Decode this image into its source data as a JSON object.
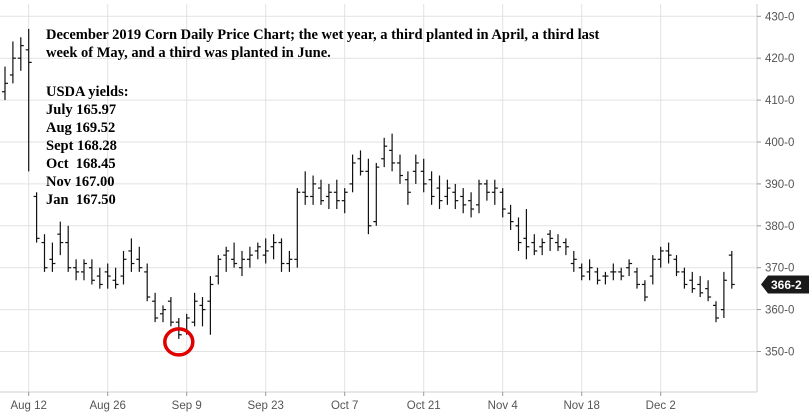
{
  "chart_data": {
    "type": "ohlc",
    "title": "December 2019 Corn Daily Price Chart; the wet year, a third planted in April, a third last\nweek of May, and a third was planted in June.",
    "annotation": {
      "heading": "USDA yields:",
      "lines": [
        "July 165.97",
        "Aug 169.52",
        "Sept 168.28",
        "Oct  168.45",
        "Nov 167.00",
        "Jan  167.50"
      ]
    },
    "last_price_label": "366-2",
    "ylim": [
      345,
      432
    ],
    "y_ticks": [
      {
        "value": 350,
        "label": "350-0"
      },
      {
        "value": 360,
        "label": "360-0"
      },
      {
        "value": 370,
        "label": "370-0"
      },
      {
        "value": 380,
        "label": "380-0"
      },
      {
        "value": 390,
        "label": "390-0"
      },
      {
        "value": 400,
        "label": "400-0"
      },
      {
        "value": 410,
        "label": "410-0"
      },
      {
        "value": 420,
        "label": "420-0"
      },
      {
        "value": 430,
        "label": "430-0"
      }
    ],
    "x_ticks": [
      {
        "index": 3,
        "label": "Aug 12"
      },
      {
        "index": 13,
        "label": "Aug 26"
      },
      {
        "index": 23,
        "label": "Sep 9"
      },
      {
        "index": 33,
        "label": "Sep 23"
      },
      {
        "index": 43,
        "label": "Oct 7"
      },
      {
        "index": 53,
        "label": "Oct 21"
      },
      {
        "index": 63,
        "label": "Nov 4"
      },
      {
        "index": 73,
        "label": "Nov 18"
      },
      {
        "index": 83,
        "label": "Dec 2"
      }
    ],
    "circled_bar_index": 22,
    "colors": {
      "bars": "#111111",
      "grid": "#e2e2e2",
      "badge": "#1a1a1a",
      "circle": "#e00000"
    },
    "bars": [
      {
        "o": 412,
        "h": 418,
        "l": 410,
        "c": 414
      },
      {
        "o": 416,
        "h": 424,
        "l": 414,
        "c": 420
      },
      {
        "o": 420,
        "h": 425,
        "l": 417,
        "c": 423
      },
      {
        "o": 422,
        "h": 427,
        "l": 393,
        "c": 419
      },
      {
        "o": 387,
        "h": 388,
        "l": 376,
        "c": 377
      },
      {
        "o": 376,
        "h": 378,
        "l": 369,
        "c": 370
      },
      {
        "o": 372,
        "h": 376,
        "l": 369,
        "c": 371
      },
      {
        "o": 378,
        "h": 381,
        "l": 373,
        "c": 376
      },
      {
        "o": 376,
        "h": 380,
        "l": 369,
        "c": 370
      },
      {
        "o": 370,
        "h": 372,
        "l": 367,
        "c": 369
      },
      {
        "o": 369,
        "h": 372,
        "l": 367,
        "c": 371
      },
      {
        "o": 370,
        "h": 372,
        "l": 366,
        "c": 367
      },
      {
        "o": 368,
        "h": 370,
        "l": 365,
        "c": 366
      },
      {
        "o": 369,
        "h": 371,
        "l": 365,
        "c": 368
      },
      {
        "o": 367,
        "h": 370,
        "l": 365,
        "c": 366
      },
      {
        "o": 368,
        "h": 374,
        "l": 366,
        "c": 372
      },
      {
        "o": 374,
        "h": 377,
        "l": 369,
        "c": 371
      },
      {
        "o": 372,
        "h": 375,
        "l": 369,
        "c": 370
      },
      {
        "o": 369,
        "h": 371,
        "l": 362,
        "c": 363
      },
      {
        "o": 362,
        "h": 364,
        "l": 357,
        "c": 358
      },
      {
        "o": 359,
        "h": 361,
        "l": 357,
        "c": 360
      },
      {
        "o": 362,
        "h": 363,
        "l": 356,
        "c": 357
      },
      {
        "o": 357,
        "h": 358,
        "l": 353,
        "c": 354
      },
      {
        "o": 355,
        "h": 359,
        "l": 354,
        "c": 358
      },
      {
        "o": 357,
        "h": 364,
        "l": 356,
        "c": 362
      },
      {
        "o": 361,
        "h": 363,
        "l": 356,
        "c": 360
      },
      {
        "o": 362,
        "h": 368,
        "l": 354,
        "c": 366
      },
      {
        "o": 368,
        "h": 373,
        "l": 366,
        "c": 372
      },
      {
        "o": 373,
        "h": 375,
        "l": 369,
        "c": 374
      },
      {
        "o": 372,
        "h": 376,
        "l": 370,
        "c": 371
      },
      {
        "o": 370,
        "h": 374,
        "l": 368,
        "c": 372
      },
      {
        "o": 372,
        "h": 375,
        "l": 370,
        "c": 373
      },
      {
        "o": 374,
        "h": 376,
        "l": 372,
        "c": 375
      },
      {
        "o": 373,
        "h": 377,
        "l": 371,
        "c": 374
      },
      {
        "o": 375,
        "h": 378,
        "l": 372,
        "c": 376
      },
      {
        "o": 376,
        "h": 377,
        "l": 369,
        "c": 371
      },
      {
        "o": 371,
        "h": 374,
        "l": 369,
        "c": 372
      },
      {
        "o": 372,
        "h": 389,
        "l": 370,
        "c": 388
      },
      {
        "o": 388,
        "h": 393,
        "l": 385,
        "c": 387
      },
      {
        "o": 387,
        "h": 392,
        "l": 385,
        "c": 390
      },
      {
        "o": 389,
        "h": 391,
        "l": 385,
        "c": 386
      },
      {
        "o": 387,
        "h": 390,
        "l": 384,
        "c": 388
      },
      {
        "o": 388,
        "h": 391,
        "l": 384,
        "c": 386
      },
      {
        "o": 386,
        "h": 389,
        "l": 383,
        "c": 388
      },
      {
        "o": 390,
        "h": 397,
        "l": 388,
        "c": 395
      },
      {
        "o": 396,
        "h": 398,
        "l": 392,
        "c": 393
      },
      {
        "o": 393,
        "h": 396,
        "l": 378,
        "c": 380
      },
      {
        "o": 381,
        "h": 395,
        "l": 380,
        "c": 394
      },
      {
        "o": 396,
        "h": 401,
        "l": 394,
        "c": 399
      },
      {
        "o": 398,
        "h": 402,
        "l": 393,
        "c": 395
      },
      {
        "o": 395,
        "h": 397,
        "l": 390,
        "c": 392
      },
      {
        "o": 391,
        "h": 393,
        "l": 385,
        "c": 388
      },
      {
        "o": 393,
        "h": 397,
        "l": 390,
        "c": 395
      },
      {
        "o": 393,
        "h": 396,
        "l": 388,
        "c": 390
      },
      {
        "o": 391,
        "h": 393,
        "l": 385,
        "c": 387
      },
      {
        "o": 389,
        "h": 392,
        "l": 384,
        "c": 386
      },
      {
        "o": 387,
        "h": 391,
        "l": 385,
        "c": 389
      },
      {
        "o": 388,
        "h": 390,
        "l": 384,
        "c": 386
      },
      {
        "o": 387,
        "h": 389,
        "l": 383,
        "c": 385
      },
      {
        "o": 386,
        "h": 388,
        "l": 382,
        "c": 384
      },
      {
        "o": 385,
        "h": 391,
        "l": 383,
        "c": 390
      },
      {
        "o": 390,
        "h": 391,
        "l": 386,
        "c": 388
      },
      {
        "o": 388,
        "h": 391,
        "l": 385,
        "c": 389
      },
      {
        "o": 388,
        "h": 389,
        "l": 382,
        "c": 384
      },
      {
        "o": 383,
        "h": 385,
        "l": 379,
        "c": 381
      },
      {
        "o": 380,
        "h": 382,
        "l": 374,
        "c": 376
      },
      {
        "o": 377,
        "h": 384,
        "l": 372,
        "c": 375
      },
      {
        "o": 376,
        "h": 378,
        "l": 373,
        "c": 374
      },
      {
        "o": 375,
        "h": 377,
        "l": 373,
        "c": 376
      },
      {
        "o": 378,
        "h": 379,
        "l": 374,
        "c": 377
      },
      {
        "o": 376,
        "h": 378,
        "l": 374,
        "c": 375
      },
      {
        "o": 376,
        "h": 377,
        "l": 373,
        "c": 375
      },
      {
        "o": 371,
        "h": 374,
        "l": 369,
        "c": 372
      },
      {
        "o": 370,
        "h": 371,
        "l": 367,
        "c": 368
      },
      {
        "o": 369,
        "h": 372,
        "l": 367,
        "c": 370
      },
      {
        "o": 369,
        "h": 370,
        "l": 366,
        "c": 367
      },
      {
        "o": 368,
        "h": 369,
        "l": 366,
        "c": 368
      },
      {
        "o": 369,
        "h": 371,
        "l": 367,
        "c": 369
      },
      {
        "o": 369,
        "h": 370,
        "l": 367,
        "c": 368
      },
      {
        "o": 370,
        "h": 372,
        "l": 368,
        "c": 371
      },
      {
        "o": 369,
        "h": 370,
        "l": 365,
        "c": 366
      },
      {
        "o": 366,
        "h": 367,
        "l": 362,
        "c": 363
      },
      {
        "o": 368,
        "h": 373,
        "l": 366,
        "c": 372
      },
      {
        "o": 372,
        "h": 375,
        "l": 370,
        "c": 374
      },
      {
        "o": 374,
        "h": 376,
        "l": 371,
        "c": 373
      },
      {
        "o": 372,
        "h": 373,
        "l": 368,
        "c": 369
      },
      {
        "o": 369,
        "h": 370,
        "l": 365,
        "c": 366
      },
      {
        "o": 367,
        "h": 369,
        "l": 364,
        "c": 365
      },
      {
        "o": 366,
        "h": 368,
        "l": 363,
        "c": 364
      },
      {
        "o": 365,
        "h": 367,
        "l": 362,
        "c": 363
      },
      {
        "o": 361,
        "h": 362,
        "l": 357,
        "c": 358
      },
      {
        "o": 360,
        "h": 369,
        "l": 358,
        "c": 367
      },
      {
        "o": 373,
        "h": 374,
        "l": 365,
        "c": 366
      }
    ]
  }
}
